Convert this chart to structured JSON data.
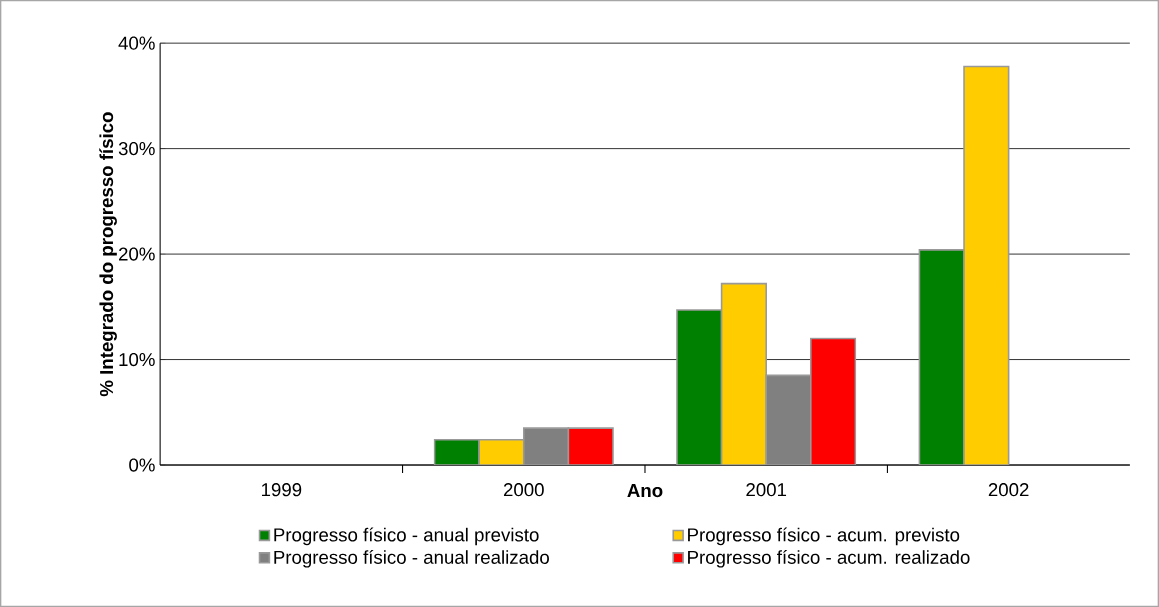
{
  "chart_data": {
    "type": "bar",
    "xlabel": "Ano",
    "ylabel": "% Integrado do progresso físico",
    "categories": [
      "1999",
      "2000",
      "2001",
      "2002"
    ],
    "series": [
      {
        "name": "Progresso físico - anual previsto",
        "color": "#008000",
        "values": [
          null,
          2.4,
          14.7,
          20.4
        ]
      },
      {
        "name": "Progresso físico - acum. previsto",
        "color": "#ffcc00",
        "values": [
          null,
          2.4,
          17.2,
          37.8
        ]
      },
      {
        "name": "Progresso físico - anual realizado",
        "color": "#808080",
        "values": [
          null,
          3.5,
          8.5,
          null
        ]
      },
      {
        "name": "Progresso físico - acum. realizado",
        "color": "#ff0000",
        "values": [
          null,
          3.5,
          12.0,
          null
        ]
      }
    ],
    "ylim": [
      0,
      40
    ],
    "yticks": [
      {
        "value": 0,
        "label": "0%"
      },
      {
        "value": 10,
        "label": "10%"
      },
      {
        "value": 20,
        "label": "20%"
      },
      {
        "value": 30,
        "label": "30%"
      },
      {
        "value": 40,
        "label": "40%"
      }
    ],
    "grid": "y",
    "legend": "bottom"
  }
}
